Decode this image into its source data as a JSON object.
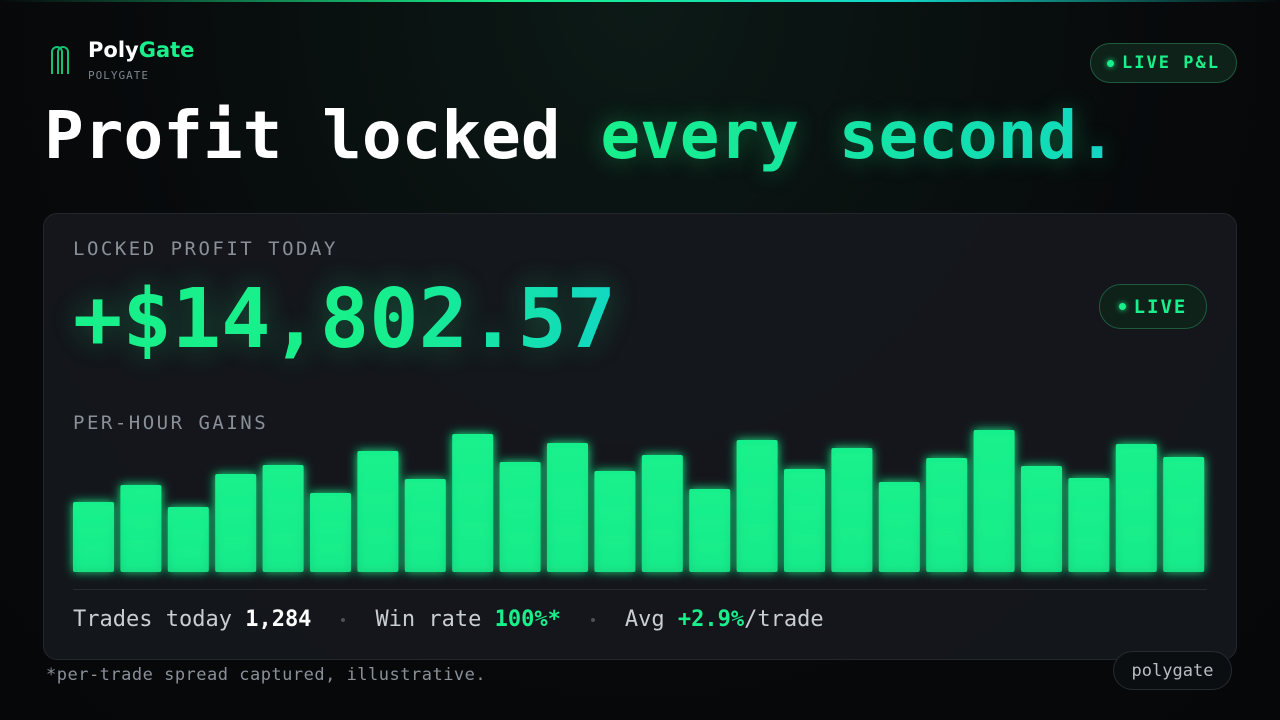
{
  "brand": {
    "name_part1": "Poly",
    "name_part2": "Gate",
    "subtitle": "POLYGATE"
  },
  "badge": "LIVE P&L",
  "headline": {
    "part1": "Profit locked",
    "part2": "every second."
  },
  "card": {
    "label": "LOCKED PROFIT TODAY",
    "amount": "+$14,802.57",
    "live": "LIVE"
  },
  "chart_data": {
    "type": "bar",
    "title": "PER-HOUR GAINS",
    "values": [
      70,
      87,
      65,
      98,
      107,
      79,
      121,
      93,
      138,
      110,
      129,
      101,
      117,
      83,
      132,
      103,
      124,
      90,
      114,
      142,
      106,
      94,
      128,
      115
    ],
    "color": "#19f08c"
  },
  "stats": {
    "trades_label": "Trades today",
    "trades_value": "1,284",
    "win_label": "Win rate",
    "win_value": "100%*",
    "avg_label": "Avg",
    "avg_value": "+2.9%",
    "avg_unit": "/trade"
  },
  "footnote": "*per-trade spread captured, illustrative.",
  "watermark": "polygate"
}
